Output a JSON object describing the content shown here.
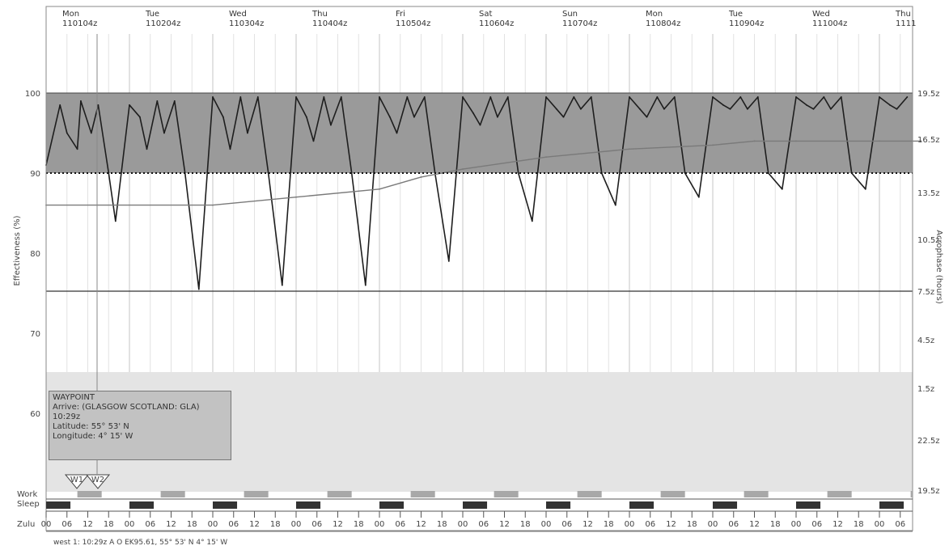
{
  "chart_data": {
    "type": "line",
    "y_axis_left": {
      "label": "Effectiveness (%)",
      "ticks": [
        "100",
        "90",
        "80",
        "70",
        "60"
      ],
      "range": [
        56,
        100
      ]
    },
    "y_axis_right": {
      "label": "Acrophase (hours)",
      "ticks": [
        "19.5z",
        "16.5z",
        "13.5z",
        "10.5z",
        "7.5z",
        "4.5z",
        "1.5z",
        "22.5z",
        "19.5z"
      ]
    },
    "days": [
      {
        "day": "Mon",
        "date": "110104z"
      },
      {
        "day": "Tue",
        "date": "110204z"
      },
      {
        "day": "Wed",
        "date": "110304z"
      },
      {
        "day": "Thu",
        "date": "110404z"
      },
      {
        "day": "Fri",
        "date": "110504z"
      },
      {
        "day": "Sat",
        "date": "110604z"
      },
      {
        "day": "Sun",
        "date": "110704z"
      },
      {
        "day": "Mon",
        "date": "110804z"
      },
      {
        "day": "Tue",
        "date": "110904z"
      },
      {
        "day": "Wed",
        "date": "111004z"
      },
      {
        "day": "Thu",
        "date": "1111"
      }
    ],
    "hour_ticks": [
      "00",
      "06",
      "12",
      "18"
    ],
    "criterion_line": 90,
    "lower_reference_line": 75,
    "series": [
      {
        "name": "Effectiveness",
        "x_hours": [
          0,
          4,
          6,
          9,
          10,
          13,
          15,
          18,
          20,
          24,
          27,
          29,
          32,
          34,
          37,
          40,
          44,
          48,
          51,
          53,
          56,
          58,
          61,
          64,
          68,
          72,
          75,
          77,
          80,
          82,
          85,
          88,
          92,
          96,
          99,
          101,
          104,
          106,
          109,
          112,
          116,
          120,
          123,
          125,
          128,
          130,
          133,
          136,
          140,
          144,
          147,
          149,
          152,
          154,
          157,
          160,
          164,
          168,
          171,
          173,
          176,
          178,
          181,
          184,
          188,
          192,
          195,
          197,
          200,
          202,
          205,
          208,
          212,
          216,
          219,
          221,
          224,
          226,
          229,
          232,
          236,
          240,
          243,
          245,
          248
        ],
        "values": [
          91,
          98.5,
          95,
          93,
          99,
          95,
          98.5,
          90,
          84,
          98.5,
          97,
          93,
          99,
          95,
          99,
          90,
          75.5,
          99.5,
          97,
          93,
          99.5,
          95,
          99.5,
          90,
          76,
          99.5,
          97,
          94,
          99.5,
          96,
          99.5,
          90,
          76,
          99.5,
          97,
          95,
          99.5,
          97,
          99.5,
          90,
          79,
          99.5,
          97.5,
          96,
          99.5,
          97,
          99.5,
          90,
          84,
          99.5,
          98,
          97,
          99.5,
          98,
          99.5,
          90,
          86,
          99.5,
          98,
          97,
          99.5,
          98,
          99.5,
          90,
          87,
          99.5,
          98.5,
          98,
          99.5,
          98,
          99.5,
          90,
          88,
          99.5,
          98.5,
          98,
          99.5,
          98,
          99.5,
          90,
          88,
          99.5,
          98.5,
          98,
          99.5
        ]
      },
      {
        "name": "Acrophase",
        "x_hours": [
          0,
          48,
          72,
          96,
          108,
          120,
          144,
          168,
          192,
          204,
          216,
          240,
          252
        ],
        "values": [
          86,
          86,
          87,
          88,
          89.5,
          90.5,
          92,
          93,
          93.5,
          94,
          94,
          94,
          94
        ]
      }
    ],
    "work_rows": {
      "label_work": "Work",
      "label_sleep": "Sleep",
      "label_zulu": "Zulu"
    },
    "markers": [
      "W1",
      "W2"
    ]
  },
  "waypoint": {
    "title": "WAYPOINT",
    "line1": "Arrive: (GLASGOW SCOTLAND: GLA)",
    "line2": "10:29z",
    "line3": "Latitude: 55° 53' N",
    "line4": "Longitude: 4° 15' W"
  },
  "footer": "west 1: 10:29z A O EK95.61, 55° 53' N 4° 15' W",
  "colors": {
    "band": "#9a9a9a",
    "effect_line": "#1e1e1e",
    "grid": "#d8d8d8",
    "sleep_bar": "#333333",
    "work_bar": "#a8a8a8",
    "waypoint_bg": "#c2c2c2"
  }
}
